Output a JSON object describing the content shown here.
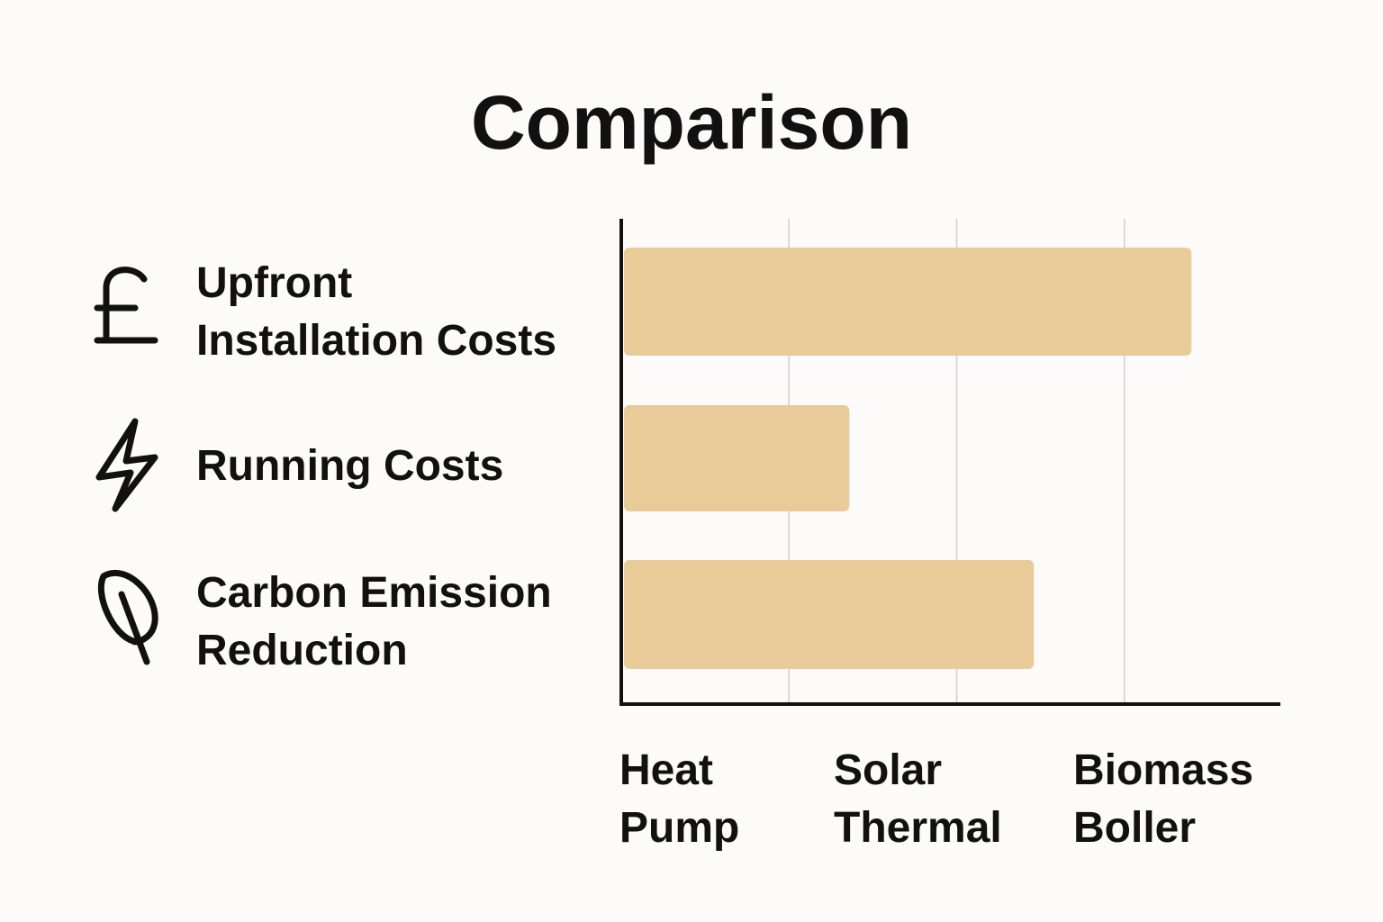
{
  "chart_data": {
    "type": "bar",
    "title": "Comparison",
    "categories": [
      "Upfront Installation Costs",
      "Running Costs",
      "Carbon Emission Reduction"
    ],
    "values": [
      3.4,
      1.36,
      2.46
    ],
    "color": "#e8cb98",
    "xlim": [
      0,
      3.93
    ],
    "xticks": [
      1,
      2,
      3
    ],
    "grid": true,
    "x_labels": [
      "Heat Pump",
      "Solar Thermal",
      "Biomass Boller"
    ]
  }
}
